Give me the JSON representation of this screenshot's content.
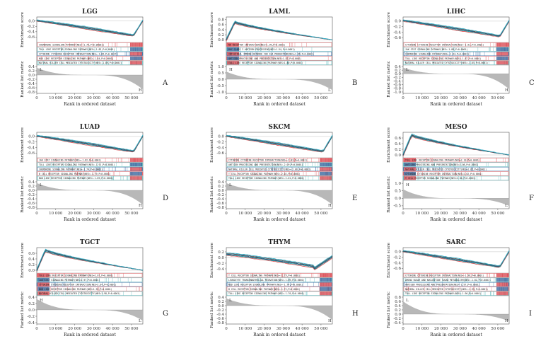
{
  "figure": {
    "colors": {
      "line_red": "#e0575b",
      "line_teal": "#2a9a9c",
      "line_blue": "#1b4f7a",
      "line_gray": "#555555",
      "line_cyan": "#3ab0c8",
      "rank_fill": "#b8b8b8",
      "heat_red": "#d8404a",
      "heat_blue": "#2d5f98",
      "legend_red": "#e0575b",
      "legend_teal": "#4fb3b6",
      "legend_blue": "#3b6ea5"
    }
  },
  "chart_data": [
    {
      "type": "line",
      "panel": "A",
      "title": "LGG",
      "ylabel": "Enrichment score",
      "ylabel2": "Ranked list metric",
      "xlabel": "Rank in ordered dataset",
      "x_ticks": [
        "0",
        "10 000",
        "20 000",
        "30 000",
        "40 000",
        "50 000"
      ],
      "xlim": [
        0,
        56000
      ],
      "es_ticks": [
        "0.0",
        "-0.2",
        "-0.4",
        "-0.6"
      ],
      "ylim": [
        -0.75,
        0.1
      ],
      "rank_ticks": [
        "0.4",
        "0.2",
        "0.0",
        "-0.2",
        "-0.4",
        "-0.6",
        "-0.8"
      ],
      "rank_range": [
        -0.8,
        0.4
      ],
      "rank_labels": [
        "L",
        "H"
      ],
      "direction": "neg",
      "legend": [
        "CHEMOKINE SIGNALING PATHWAY(NES=-1.76,P=0.00001)",
        "TOLL LIKE RECEPTOR SIGNALING PATHWAY(NES=-1.83,P=0.0001)",
        "CYTOKINE CYTOKINE RECEPTOR INTERACTION(NES=-1.66,P=0.0017)",
        "NOD LIKE RECEPTOR SIGNALING PATHWAY(NES=-1.84,P=0.0001)",
        "NATURAL KILLER CELL MEDIATED CYTOTOXICITY(NES=-1.89,P=0.0001)"
      ]
    },
    {
      "type": "line",
      "panel": "B",
      "title": "LAML",
      "ylabel": "Enrichment score",
      "ylabel2": "Ranked list metric",
      "xlabel": "Rank in ordered dataset",
      "x_ticks": [
        "0",
        "10 000",
        "20 000",
        "30 000",
        "40 000",
        "50 000"
      ],
      "xlim": [
        0,
        56000
      ],
      "es_ticks": [
        "0.8",
        "0.6",
        "0.4",
        "0.2",
        "0.0"
      ],
      "ylim": [
        -0.05,
        0.85
      ],
      "rank_ticks": [
        "1.0",
        "0.5",
        "0.0",
        "-0.5",
        "-1.0"
      ],
      "rank_range": [
        -1.0,
        1.0
      ],
      "rank_labels": [
        "H",
        "L"
      ],
      "direction": "pos",
      "legend": [
        "NK RECEPTOR INTERACTION(NES=1.96,P=0.0001)",
        "MHC CLASS I ANTIGEN PROCESSING(NES=1.94,P=0.0001)",
        "INTESTINAL IMMUNE NETWORK FOR IGA PRODUCTION(NES=1.89,P=0.0001)",
        "ANTIGEN PROCESSING AND PRESENTATION(NES=1.87,P=0.0001)",
        "TOLL LIKE RECEPTOR SIGNALING PATHWAY(NES=1.80,P=0.0001)"
      ]
    },
    {
      "type": "line",
      "panel": "C",
      "title": "LIHC",
      "ylabel": "Enrichment score",
      "ylabel2": "Ranked list metric",
      "xlabel": "Rank in ordered dataset",
      "x_ticks": [
        "0",
        "10 000",
        "20 000",
        "30 000",
        "40 000",
        "50 000"
      ],
      "xlim": [
        0,
        56000
      ],
      "es_ticks": [
        "0.0",
        "-0.2",
        "-0.4",
        "-0.6"
      ],
      "ylim": [
        -0.72,
        0.1
      ],
      "rank_ticks": [
        "0.4",
        "0.2",
        "0.0",
        "-0.2",
        "-0.4",
        "-0.6",
        "-0.8",
        "-1.0"
      ],
      "rank_range": [
        -1.0,
        0.4
      ],
      "rank_labels": [
        "L",
        "H"
      ],
      "direction": "neg",
      "legend": [
        "CYTOKINE CYTOKINE RECEPTOR INTERACTION(NES=-1.91,P=0.0001)",
        "JAK STAT SIGNALING PATHWAY(NES=-1.88,P=0.0001)",
        "CHEMOKINE SIGNALING PATHWAY(NES=-1.84,P=0.0001)",
        "TOLL LIKE RECEPTOR SIGNALING PATHWAY(NES=-1.87,P=0.0001)",
        "NATURAL KILLER CELL MEDIATED CYTOTOXICITY(NES=-1.85,P=0.0001)"
      ]
    },
    {
      "type": "line",
      "panel": "D",
      "title": "LUAD",
      "ylabel": "Enrichment score",
      "ylabel2": "Ranked list metric",
      "xlabel": "Rank in ordered dataset",
      "x_ticks": [
        "0",
        "10 000",
        "20 000",
        "30 000",
        "40 000",
        "50 000"
      ],
      "xlim": [
        0,
        56000
      ],
      "es_ticks": [
        "0.0",
        "-0.2",
        "-0.4",
        "-0.6"
      ],
      "ylim": [
        -0.72,
        0.1
      ],
      "rank_ticks": [
        "0.4",
        "0.2",
        "0.0",
        "-0.2",
        "-0.4",
        "-0.6",
        "-0.8"
      ],
      "rank_range": [
        -0.8,
        0.4
      ],
      "rank_labels": [
        "L",
        "H"
      ],
      "direction": "neg",
      "legend": [
        "JAK STAT SIGNALING PATHWAY(NES=-1.82,P=0.0001)",
        "TOLL LIKE RECEPTOR SIGNALING PATHWAY(NES=-1.92,P=0.0001)",
        "CHEMOKINE SIGNALING PATHWAY(NES=-1.74,P=0.0001)",
        "B CELL RECEPTOR SIGNALING PATHWAY(NES=-1.79,P=0.0001)",
        "NOD LIKE RECEPTOR SIGNALING PATHWAY(NES=-1.89,P=0.0001)"
      ]
    },
    {
      "type": "line",
      "panel": "E",
      "title": "SKCM",
      "ylabel": "Enrichment score",
      "ylabel2": "Ranked list metric",
      "xlabel": "Rank in ordered dataset",
      "x_ticks": [
        "0",
        "10 000",
        "20 000",
        "30 000",
        "40 000",
        "50 000"
      ],
      "xlim": [
        0,
        56000
      ],
      "es_ticks": [
        "0.0",
        "-0.2",
        "-0.4",
        "-0.6"
      ],
      "ylim": [
        -0.72,
        0.1
      ],
      "rank_ticks": [
        "0.4",
        "0.2",
        "0.0",
        "-0.2",
        "-0.4",
        "-0.6",
        "-0.8"
      ],
      "rank_range": [
        -0.8,
        0.4
      ],
      "rank_labels": [
        "L",
        "H"
      ],
      "direction": "neg",
      "legend": [
        "CYTOKINE CYTOKINE RECEPTOR INTERACTION(NES=-2.03,P=0.0001)",
        "ANTIGEN PROCESSING AND PRESENTATION(NES=-2.09,P=0.0001)",
        "NATURAL KILLER CELL MEDIATED CYTOTOXICITY(NES=-2.06,P=0.0001)",
        "T CELL RECEPTOR SIGNALING PATHWAY(NES=-2.02,P=0.0001)",
        "TOLL LIKE RECEPTOR SIGNALING PATHWAY(NES=-2.01,P=0.0001)"
      ]
    },
    {
      "type": "line",
      "panel": "F",
      "title": "MESO",
      "ylabel": "Enrichment score",
      "ylabel2": "Ranked list metric",
      "xlabel": "Rank in ordered dataset",
      "x_ticks": [
        "0",
        "10 000",
        "20 000",
        "30 000",
        "40 000",
        "50 000"
      ],
      "xlim": [
        0,
        56000
      ],
      "es_ticks": [
        "0.6",
        "0.4",
        "0.2",
        "0.0"
      ],
      "ylim": [
        -0.05,
        0.75
      ],
      "rank_ticks": [
        "1.0",
        "0.5",
        "0.0",
        "-0.5"
      ],
      "rank_range": [
        -0.6,
        1.1
      ],
      "rank_labels": [
        "H",
        "L"
      ],
      "direction": "pos",
      "legend": [
        "TOLL LIKE RECEPTOR SIGNALING PATHWAY(NES=2.10,P=0.0001)",
        "ANTIGEN PROCESSING AND PRESENTATION(NES=2.08,P=0.0001)",
        "NATURAL KILLER CELL MEDIATED CYTOTOXICITY(NES=2.05,P=0.0001)",
        "CYTOKINE CYTOKINE RECEPTOR INTERACTION(NES=2.02,P=0.0001)",
        "T CELL RECEPTOR SIGNALING PATHWAY(NES=2.00,P=0.0001)"
      ]
    },
    {
      "type": "line",
      "panel": "G",
      "title": "TGCT",
      "ylabel": "Enrichment score",
      "ylabel2": "Ranked list metric",
      "xlabel": "Rank in ordered dataset",
      "x_ticks": [
        "0",
        "10 000",
        "20 000",
        "30 000",
        "40 000",
        "50 000"
      ],
      "xlim": [
        0,
        56000
      ],
      "es_ticks": [
        "0.6",
        "0.4",
        "0.2",
        "0.0"
      ],
      "ylim": [
        -0.05,
        0.75
      ],
      "rank_ticks": [
        "0.4",
        "0.2",
        "0.0",
        "-0.2",
        "-0.4"
      ],
      "rank_range": [
        -0.4,
        0.4
      ],
      "rank_labels": [
        "H",
        "L"
      ],
      "direction": "pos",
      "legend": [
        "TOLL LIKE RECEPTOR SIGNALING PATHWAY(NES=2.07,P=0.0001)",
        "JAK STAT SIGNALING PATHWAY(NES=1.97,P=0.0001)",
        "CYTOKINE CYTOKINE RECEPTOR INTERACTION(NES=2.04,P=0.0001)",
        "NOD LIKE RECEPTOR SIGNALING PATHWAY(NES=1.91,P=0.0001)",
        "NATURAL KILLER CELL MEDIATED CYTOTOXICITY(NES=1.98,P=0.0001)"
      ]
    },
    {
      "type": "line",
      "panel": "H",
      "title": "THYM",
      "ylabel": "Enrichment score",
      "ylabel2": "Ranked list metric",
      "xlabel": "Rank in ordered dataset",
      "x_ticks": [
        "0",
        "10 000",
        "20 000",
        "30 000",
        "40 000",
        "50 000"
      ],
      "xlim": [
        0,
        56000
      ],
      "es_ticks": [
        "0.2",
        "0.0",
        "-0.2",
        "-0.4"
      ],
      "ylim": [
        -0.5,
        0.3
      ],
      "rank_ticks": [
        "0.4",
        "0.2",
        "0.0",
        "-0.2",
        "-0.4",
        "-0.6",
        "-0.8"
      ],
      "rank_range": [
        -0.8,
        0.4
      ],
      "rank_labels": [
        "L",
        "H"
      ],
      "direction": "neg_mid",
      "legend": [
        "T CELL RECEPTOR SIGNALING PATHWAY(NES=-1.79,P=0.0001)",
        "LEUKOCYTE TRANSENDOTHELIAL MIGRATION(NES=-1.69,P=0.0001)",
        "NOD LIKE RECEPTOR SIGNALING PATHWAY(NES=-1.74,P=0.0001)",
        "B CELL RECEPTOR SIGNALING PATHWAY(NES=-1.72,P=0.0001)",
        "TOLL LIKE RECEPTOR SIGNALING PATHWAY(NES=-1.70,P=0.0001)"
      ]
    },
    {
      "type": "line",
      "panel": "I",
      "title": "SARC",
      "ylabel": "Enrichment score",
      "ylabel2": "Ranked list metric",
      "xlabel": "Rank in ordered dataset",
      "x_ticks": [
        "0",
        "10 000",
        "20 000",
        "30 000",
        "40 000",
        "50 000"
      ],
      "xlim": [
        0,
        56000
      ],
      "es_ticks": [
        "0.0",
        "-0.2",
        "-0.4",
        "-0.6"
      ],
      "ylim": [
        -0.72,
        0.1
      ],
      "rank_ticks": [
        "0.8",
        "0.6",
        "0.4",
        "0.2",
        "0.0",
        "-0.2",
        "-0.4"
      ],
      "rank_range": [
        -0.4,
        0.8
      ],
      "rank_labels": [
        "L",
        "H"
      ],
      "direction": "neg",
      "legend": [
        "CYTOKINE CYTOKINE RECEPTOR INTERACTION(NES=-1.96,P=0.0001)",
        "AMINO SUGAR AND NUCLEOTIDE SUGAR METABOLISM(NES=-1.82,P=0.0001)",
        "ANTIGEN PROCESSING AND PRESENTATION(NES=-1.97,P=0.0001)",
        "NATURAL KILLER CELL MEDIATED CYTOTOXICITY(NES=-1.93,P=0.0001)",
        "TOLL LIKE RECEPTOR SIGNALING PATHWAY(NES=-1.90,P=0.0001)"
      ]
    }
  ]
}
